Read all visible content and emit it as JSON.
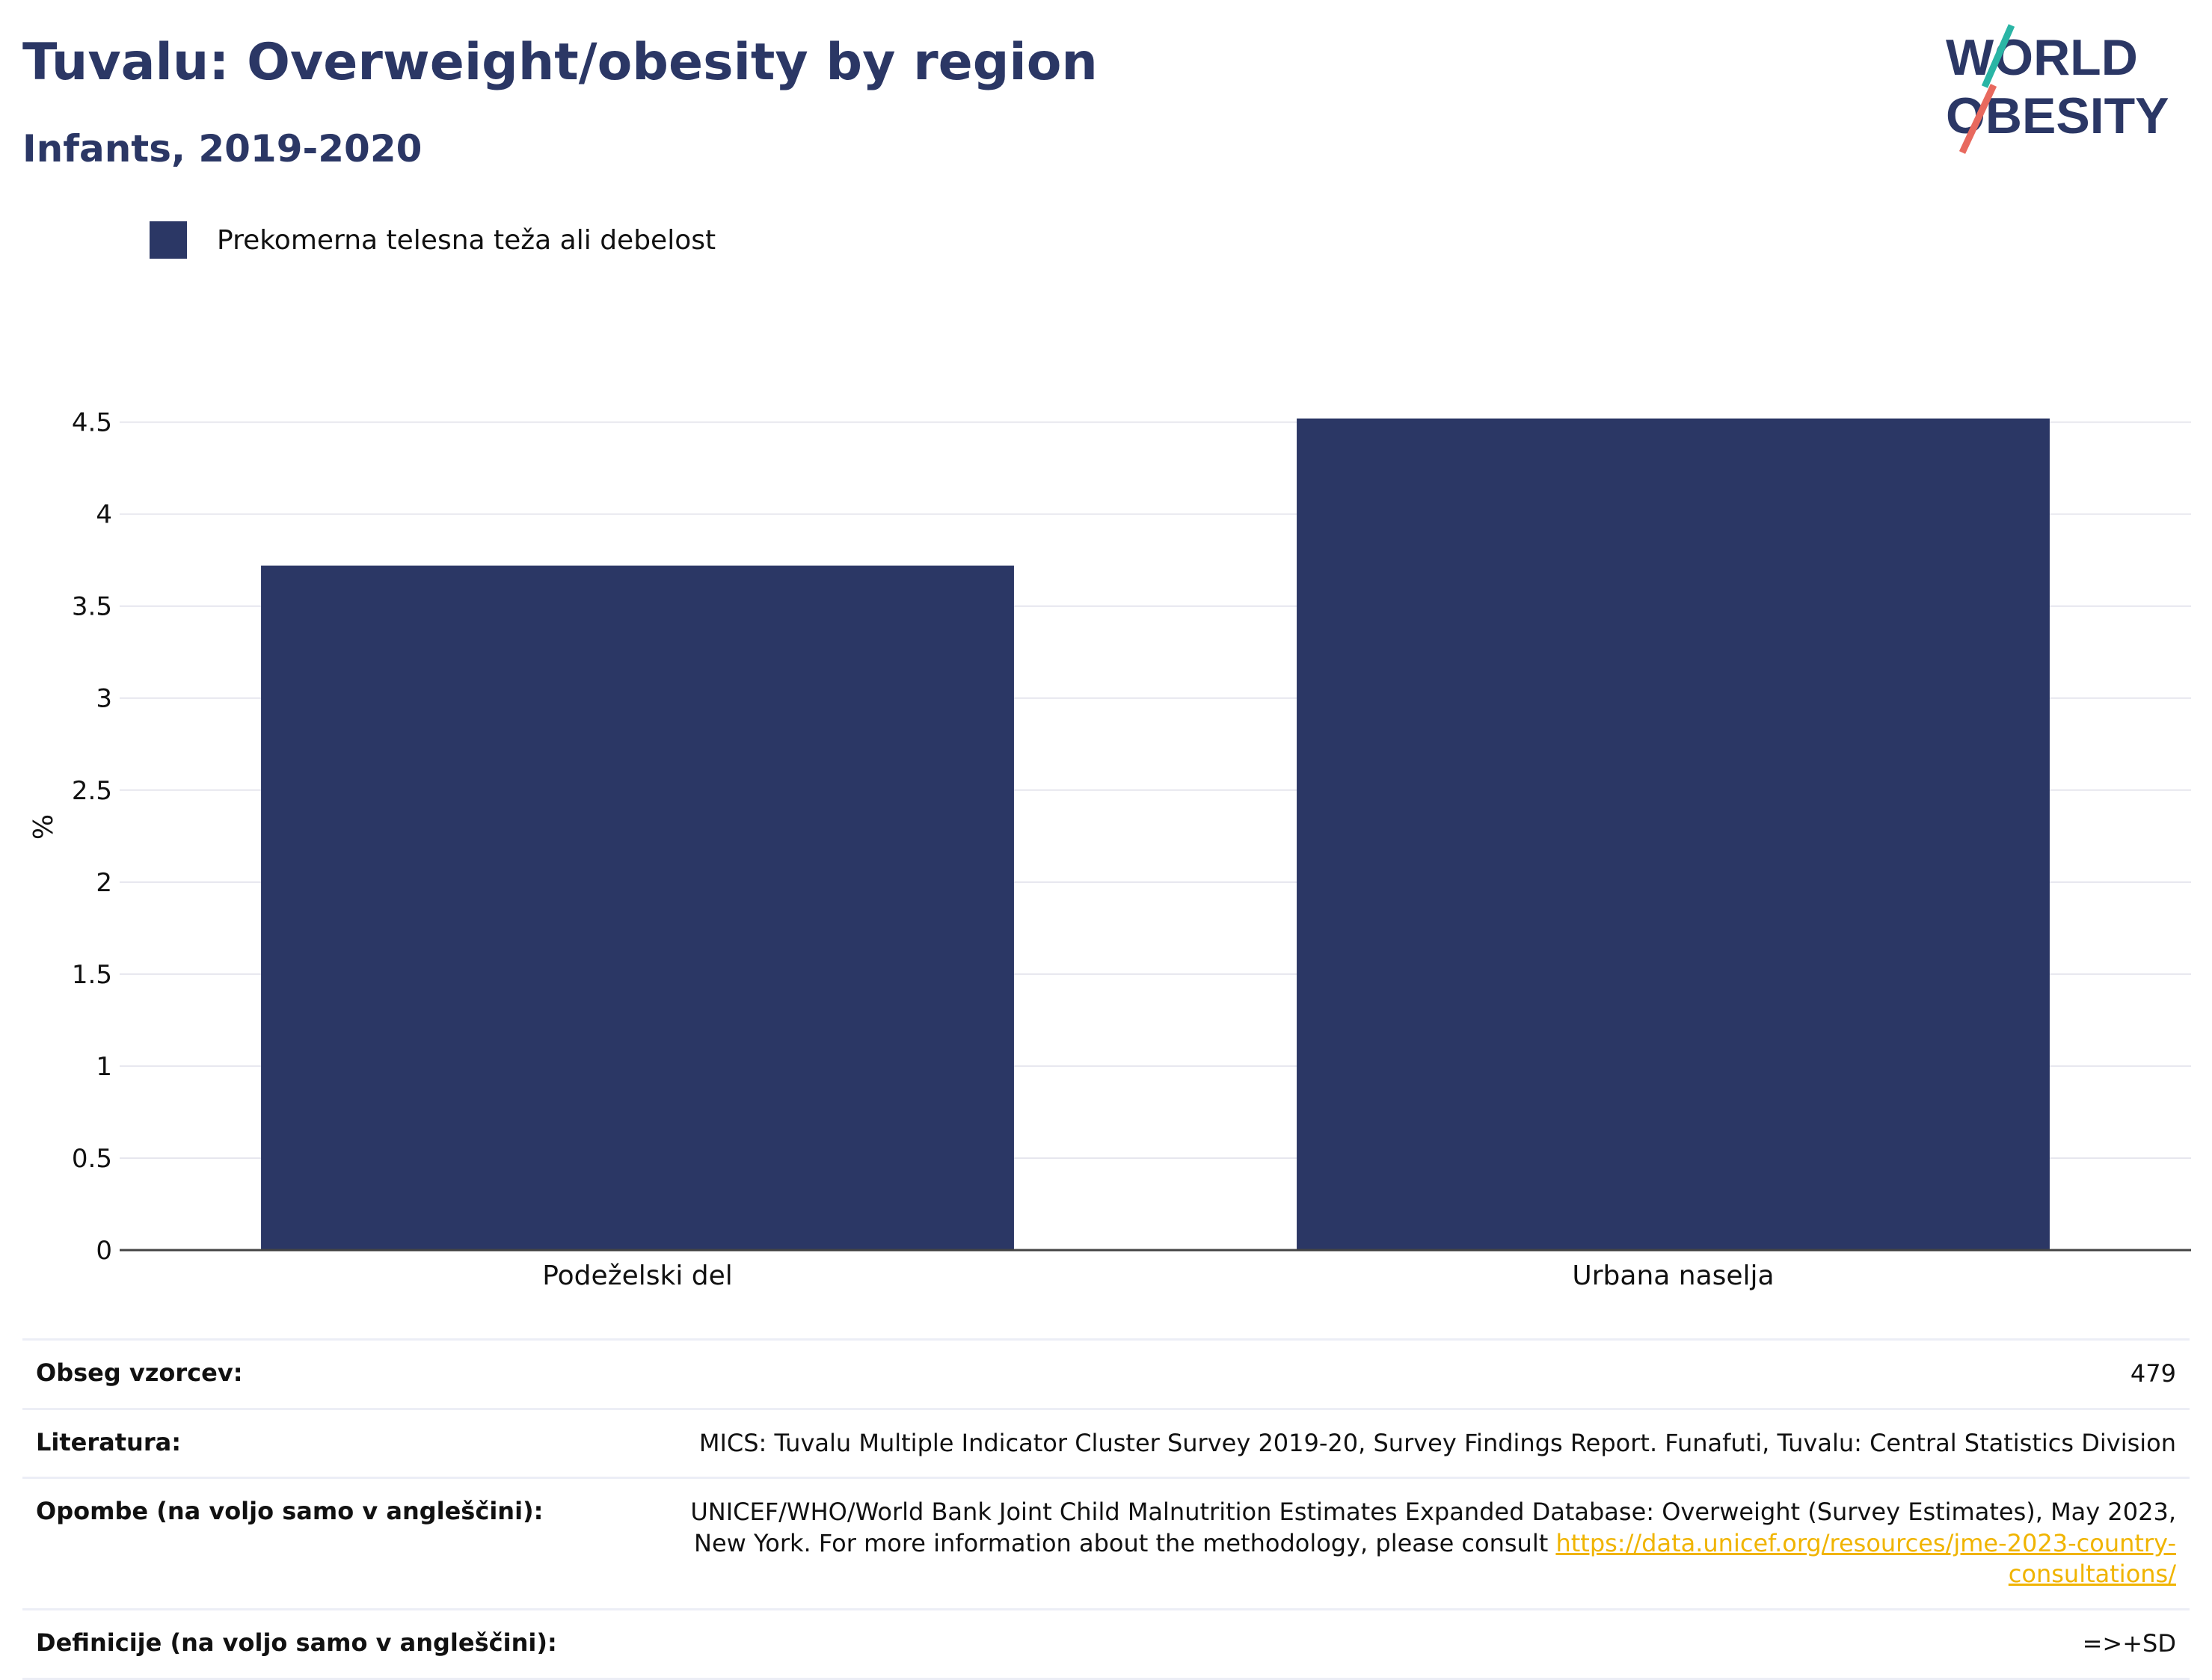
{
  "header": {
    "title": "Tuvalu: Overweight/obesity by region",
    "subtitle": "Infants, 2019-2020"
  },
  "logo": {
    "line1": "WORLD",
    "line2": "OBESITY",
    "text_color": "#2b3765",
    "accent1": "#2ab5a5",
    "accent2": "#e8695e"
  },
  "legend": {
    "label": "Prekomerna telesna teža ali debelost",
    "color": "#2b3765"
  },
  "chart_data": {
    "type": "bar",
    "categories": [
      "Podeželski del",
      "Urbana naselja"
    ],
    "series": [
      {
        "name": "Prekomerna telesna teža ali debelost",
        "values": [
          3.72,
          4.52
        ],
        "color": "#2b3765"
      }
    ],
    "ylabel": "%",
    "xlabel": "",
    "ylim": [
      0,
      4.6
    ],
    "yticks": [
      0,
      0.5,
      1,
      1.5,
      2,
      2.5,
      3,
      3.5,
      4,
      4.5
    ],
    "ytick_labels": [
      "0",
      "0.5",
      "1",
      "1.5",
      "2",
      "2.5",
      "3",
      "3.5",
      "4",
      "4.5"
    ],
    "grid": true,
    "legend_position": "top-left"
  },
  "info": {
    "sample_label": "Obseg vzorcev:",
    "sample_value": "479",
    "literature_label": "Literatura:",
    "literature_value": "MICS: Tuvalu Multiple Indicator Cluster Survey 2019-20, Survey Findings Report. Funafuti, Tuvalu: Central Statistics Division",
    "notes_label": "Opombe (na voljo samo v angleščini):",
    "notes_value": "UNICEF/WHO/World Bank Joint Child Malnutrition Estimates Expanded Database: Overweight (Survey Estimates), May 2023, New York. For more information about the methodology, please consult",
    "notes_link": "https://data.unicef.org/resources/jme-2023-country-consultations/",
    "definitions_label": "Definicije (na voljo samo v angleščini):",
    "definitions_value": "=>+SD"
  }
}
